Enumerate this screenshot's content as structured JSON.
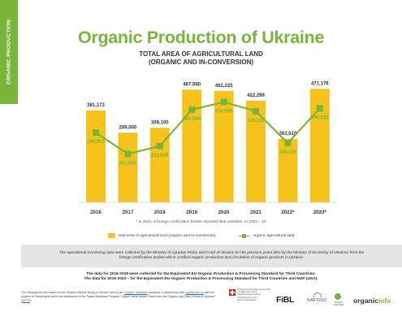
{
  "side_tab": "ORGANIC PRODUCTION",
  "title": "Organic Production of Ukraine",
  "subtitle_line1": "TOTAL AREA OF AGRICULTURAL LAND",
  "subtitle_line2": "(ORGANIC AND IN-CONVERSION)",
  "footnote": "* in 2022, 8 foreign certification bodies reported their activities, in 2023 – 10",
  "legend": {
    "bar": "total area of agricultural land (organic and in-conversion)",
    "line": "organic agricultural land"
  },
  "band_text": "The operational monitoring data were collected by the Ministry of Agrarian Policy and Food of Ukraine (in the previous years also by the Ministry of Economy of Ukraine) from the foreign certification bodies which certified organic production and circulation of organic products in Ukraine.",
  "source_line1": "The data for 2016-2018 were collected for the Equivalent EU Organic Production & Processing Standard for Third Countries;",
  "source_line2": "The data for 2019-2023 – for the Equivalent EU Organic Production & Processing Standard for Third Countries and NOP (USA).",
  "credit": {
    "p1": "The infographics are based on the Organic Market Study of Ukraine held by the ",
    "link1": "Organic Standard",
    "p2": " (Ukraine) in partnership with ",
    "link2": "organicinfo.ua",
    "p3": " with the support of Switzerland within the framework of the Swiss-Ukrainian Program \"Higher Value Added Trade from the Organic and Dairy Sector in Ukraine\" (",
    "link3": "QFTP",
    "p4": ")."
  },
  "logos": {
    "swiss": "Schweizerische Eidgenossenschaft Confédération suisse Confederazione Svizzera Confederaziun svizra",
    "swiss_sub": "Swiss Confederation",
    "fibl": "FiBL",
    "safoso": "SAFOSO",
    "os": "Organic Standard",
    "oi_a": "organic",
    "oi_b": "info"
  },
  "colors": {
    "bar": "#f6c31c",
    "line": "#79b53a",
    "accent": "#79b53a"
  },
  "chart_data": {
    "type": "bar",
    "categories": [
      "2016",
      "2017",
      "2018",
      "2019",
      "2020",
      "2021",
      "2022*",
      "2023*"
    ],
    "series": [
      {
        "name": "total area of agricultural land (organic and in-conversion)",
        "type": "bar",
        "values": [
          381173,
          289000,
          309100,
          467980,
          462225,
          422299,
          263619,
          471176
        ],
        "labels": [
          "381,173",
          "289,000",
          "309,100",
          "467,980",
          "462,225",
          "422,299",
          "263,619",
          "471,176"
        ]
      },
      {
        "name": "organic agricultural land",
        "type": "line",
        "values": [
          289551,
          201000,
          233500,
          384529,
          416585,
          378110,
          246126,
          390023
        ],
        "labels": [
          "289,551",
          "201,000",
          "233,500",
          "384,529",
          "416,585",
          "378,110",
          "246,126",
          "390,023"
        ]
      }
    ],
    "ylim": [
      0,
      550000
    ],
    "grid": false,
    "legend_position": "bottom"
  }
}
